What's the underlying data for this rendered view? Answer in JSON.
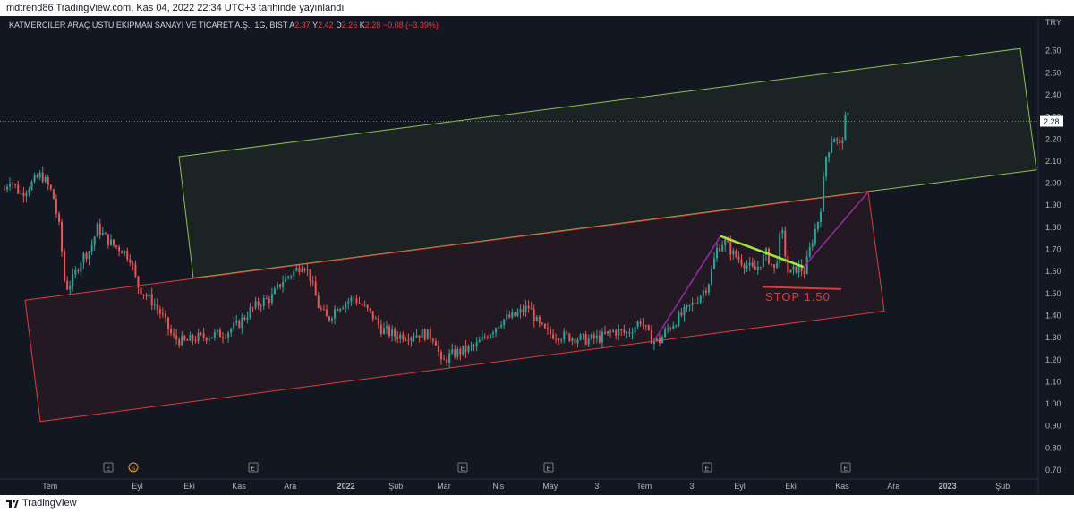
{
  "caption": "mdtrend86 TradingView.com, Kas 04, 2022 22:34 UTC+3 tarihinde yayınlandı",
  "legend": {
    "symbol": "KATMERCILER ARAÇ ÜSTÜ EKİPMAN SANAYİ VE TİCARET A.Ş., 1G, BIST",
    "o_label": "A",
    "o_val": "2.37",
    "h_label": "Y",
    "h_val": "2.42",
    "l_label": "D",
    "l_val": "2.26",
    "c_label": "K",
    "c_val": "2.28",
    "change": "−0.08 (−3.39%)"
  },
  "currency": "TRY",
  "last_price": "2.28",
  "stop_label": "STOP 1.50",
  "branding": "TradingView",
  "colors": {
    "background": "#131722",
    "up": "#26a69a",
    "down": "#ef5350",
    "channel_green": "#8bc34a",
    "channel_red": "#e53935",
    "purple": "#9c27b0",
    "lime": "#a5e830",
    "stop": "#e53935"
  },
  "chart_data": {
    "type": "candlestick",
    "ylim": [
      0.7,
      2.7
    ],
    "y_ticks": [
      "2.60",
      "2.50",
      "2.40",
      "2.30",
      "2.20",
      "2.10",
      "2.00",
      "1.90",
      "1.80",
      "1.70",
      "1.60",
      "1.50",
      "1.40",
      "1.30",
      "1.20",
      "1.10",
      "1.00",
      "0.90",
      "0.80",
      "0.70"
    ],
    "x_labels": [
      "Tem",
      "Eyl",
      "Eki",
      "Kas",
      "Ara",
      "2022",
      "Şub",
      "Mar",
      "Nis",
      "May",
      "3",
      "Tem",
      "3",
      "Eyl",
      "Eki",
      "Kas",
      "Ara",
      "2023",
      "Şub"
    ],
    "event_markers": [
      "E",
      "S",
      "E",
      "E",
      "E",
      "E",
      "E"
    ],
    "price_path": [
      [
        0,
        1.94
      ],
      [
        10,
        2.02
      ],
      [
        22,
        1.95
      ],
      [
        35,
        2.0
      ],
      [
        45,
        2.04
      ],
      [
        58,
        1.95
      ],
      [
        66,
        1.78
      ],
      [
        72,
        1.52
      ],
      [
        80,
        1.56
      ],
      [
        90,
        1.66
      ],
      [
        100,
        1.7
      ],
      [
        108,
        1.8
      ],
      [
        115,
        1.76
      ],
      [
        125,
        1.72
      ],
      [
        135,
        1.7
      ],
      [
        145,
        1.66
      ],
      [
        152,
        1.54
      ],
      [
        160,
        1.5
      ],
      [
        170,
        1.46
      ],
      [
        180,
        1.4
      ],
      [
        192,
        1.3
      ],
      [
        205,
        1.28
      ],
      [
        220,
        1.3
      ],
      [
        235,
        1.31
      ],
      [
        250,
        1.32
      ],
      [
        265,
        1.36
      ],
      [
        278,
        1.42
      ],
      [
        290,
        1.46
      ],
      [
        302,
        1.48
      ],
      [
        315,
        1.56
      ],
      [
        328,
        1.6
      ],
      [
        338,
        1.64
      ],
      [
        345,
        1.58
      ],
      [
        355,
        1.44
      ],
      [
        365,
        1.38
      ],
      [
        375,
        1.44
      ],
      [
        385,
        1.46
      ],
      [
        395,
        1.48
      ],
      [
        405,
        1.44
      ],
      [
        415,
        1.4
      ],
      [
        425,
        1.34
      ],
      [
        440,
        1.31
      ],
      [
        455,
        1.31
      ],
      [
        470,
        1.32
      ],
      [
        485,
        1.3
      ],
      [
        492,
        1.18
      ],
      [
        502,
        1.22
      ],
      [
        515,
        1.24
      ],
      [
        530,
        1.26
      ],
      [
        545,
        1.32
      ],
      [
        560,
        1.38
      ],
      [
        575,
        1.4
      ],
      [
        590,
        1.44
      ],
      [
        600,
        1.36
      ],
      [
        610,
        1.32
      ],
      [
        625,
        1.31
      ],
      [
        640,
        1.3
      ],
      [
        655,
        1.29
      ],
      [
        670,
        1.3
      ],
      [
        685,
        1.33
      ],
      [
        700,
        1.32
      ],
      [
        715,
        1.38
      ],
      [
        725,
        1.3
      ],
      [
        735,
        1.28
      ],
      [
        745,
        1.34
      ],
      [
        760,
        1.4
      ],
      [
        775,
        1.46
      ],
      [
        790,
        1.54
      ],
      [
        800,
        1.7
      ],
      [
        808,
        1.74
      ],
      [
        818,
        1.68
      ],
      [
        830,
        1.64
      ],
      [
        842,
        1.6
      ],
      [
        855,
        1.68
      ],
      [
        865,
        1.6
      ],
      [
        872,
        1.8
      ],
      [
        880,
        1.58
      ],
      [
        890,
        1.62
      ],
      [
        898,
        1.6
      ],
      [
        905,
        1.72
      ],
      [
        915,
        1.86
      ],
      [
        922,
        2.12
      ],
      [
        930,
        2.22
      ],
      [
        938,
        2.16
      ],
      [
        944,
        2.3
      ],
      [
        950,
        2.3
      ]
    ],
    "overlays": {
      "upper_channel": [
        [
          200,
          2.12
        ],
        [
          1140,
          2.61
        ],
        [
          1158,
          2.06
        ],
        [
          216,
          1.57
        ]
      ],
      "lower_channel": [
        [
          28,
          1.47
        ],
        [
          970,
          1.96
        ],
        [
          988,
          1.42
        ],
        [
          45,
          0.92
        ]
      ],
      "purple_up_1": [
        [
          730,
          1.28
        ],
        [
          805,
          1.76
        ]
      ],
      "lime_down": [
        [
          805,
          1.76
        ],
        [
          898,
          1.62
        ]
      ],
      "purple_up_2": [
        [
          898,
          1.62
        ],
        [
          970,
          1.96
        ]
      ],
      "stop_line": [
        [
          852,
          1.53
        ],
        [
          940,
          1.52
        ]
      ]
    }
  }
}
